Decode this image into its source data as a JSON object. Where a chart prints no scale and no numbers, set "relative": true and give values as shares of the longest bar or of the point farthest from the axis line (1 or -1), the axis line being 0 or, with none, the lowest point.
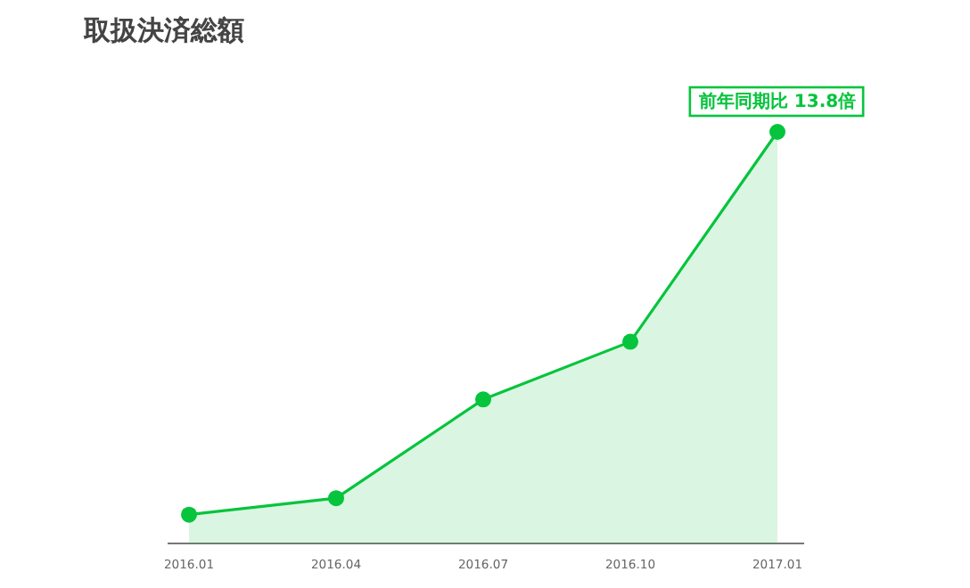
{
  "chart_data": {
    "type": "area",
    "title": "取扱決済総額",
    "relative": true,
    "marker": "circle",
    "categories": [
      "2016.01",
      "2016.04",
      "2016.07",
      "2016.10",
      "2017.01"
    ],
    "series": [
      {
        "color": "#06c43c",
        "values": [
          0.07,
          0.11,
          0.35,
          0.49,
          1
        ]
      }
    ],
    "annotations": [
      {
        "text": "前年同期比 13.8倍",
        "x": "2017.01",
        "y": 1
      }
    ]
  }
}
